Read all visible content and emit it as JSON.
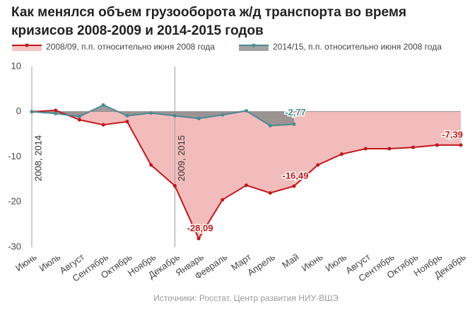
{
  "chart_data": {
    "type": "line",
    "title": [
      "Как менялся объем грузооборота ж/д транспорта во время",
      "кризисов 2008-2009 и 2014-2015 годов"
    ],
    "categories": [
      "Июнь",
      "Июль",
      "Август",
      "Сентябрь",
      "Октябрь",
      "Ноябрь",
      "Декабрь",
      "Январь",
      "Февраль",
      "Март",
      "Апрель",
      "Май",
      "Июнь",
      "Июль",
      "Август",
      "Сентябрь",
      "Октябрь",
      "Ноябрь",
      "Декабрь"
    ],
    "series": [
      {
        "name": "2008/09, п.п. относительно июня 2008 года",
        "color": "#c0171b",
        "area_color": "#f2b8b8",
        "values": [
          0,
          0.3,
          -1.8,
          -2.9,
          -2.2,
          -11.8,
          -16.4,
          -28.09,
          -19.5,
          -16.3,
          -18,
          -16.49,
          -11.8,
          -9.4,
          -8.2,
          -8.2,
          -7.9,
          -7.4,
          -7.39
        ],
        "value_labels": [
          null,
          null,
          null,
          null,
          null,
          null,
          null,
          "-28,09",
          null,
          null,
          null,
          "-16,49",
          null,
          null,
          null,
          null,
          null,
          null,
          "-7,39"
        ]
      },
      {
        "name": "2014/15, п.п. относительно июня 2008 года",
        "color": "#4a8a94",
        "area_color": "#8c8c8c",
        "values": [
          0,
          -0.4,
          -1.1,
          1.5,
          -0.9,
          -0.3,
          -0.9,
          -1.5,
          -0.7,
          0.2,
          -3.1,
          -2.77,
          null,
          null,
          null,
          null,
          null,
          null,
          null
        ],
        "value_labels": [
          null,
          null,
          null,
          null,
          null,
          null,
          null,
          null,
          null,
          null,
          null,
          "-2,77",
          null,
          null,
          null,
          null,
          null,
          null,
          null
        ]
      }
    ],
    "annotations": [
      "2008, 2014",
      "2009, 2015"
    ],
    "ylim": [
      -30,
      10
    ],
    "yticks": [
      -30,
      -20,
      -10,
      0,
      10
    ],
    "source": "Источники: Росстат, Центр развития НИУ-ВШЭ"
  }
}
